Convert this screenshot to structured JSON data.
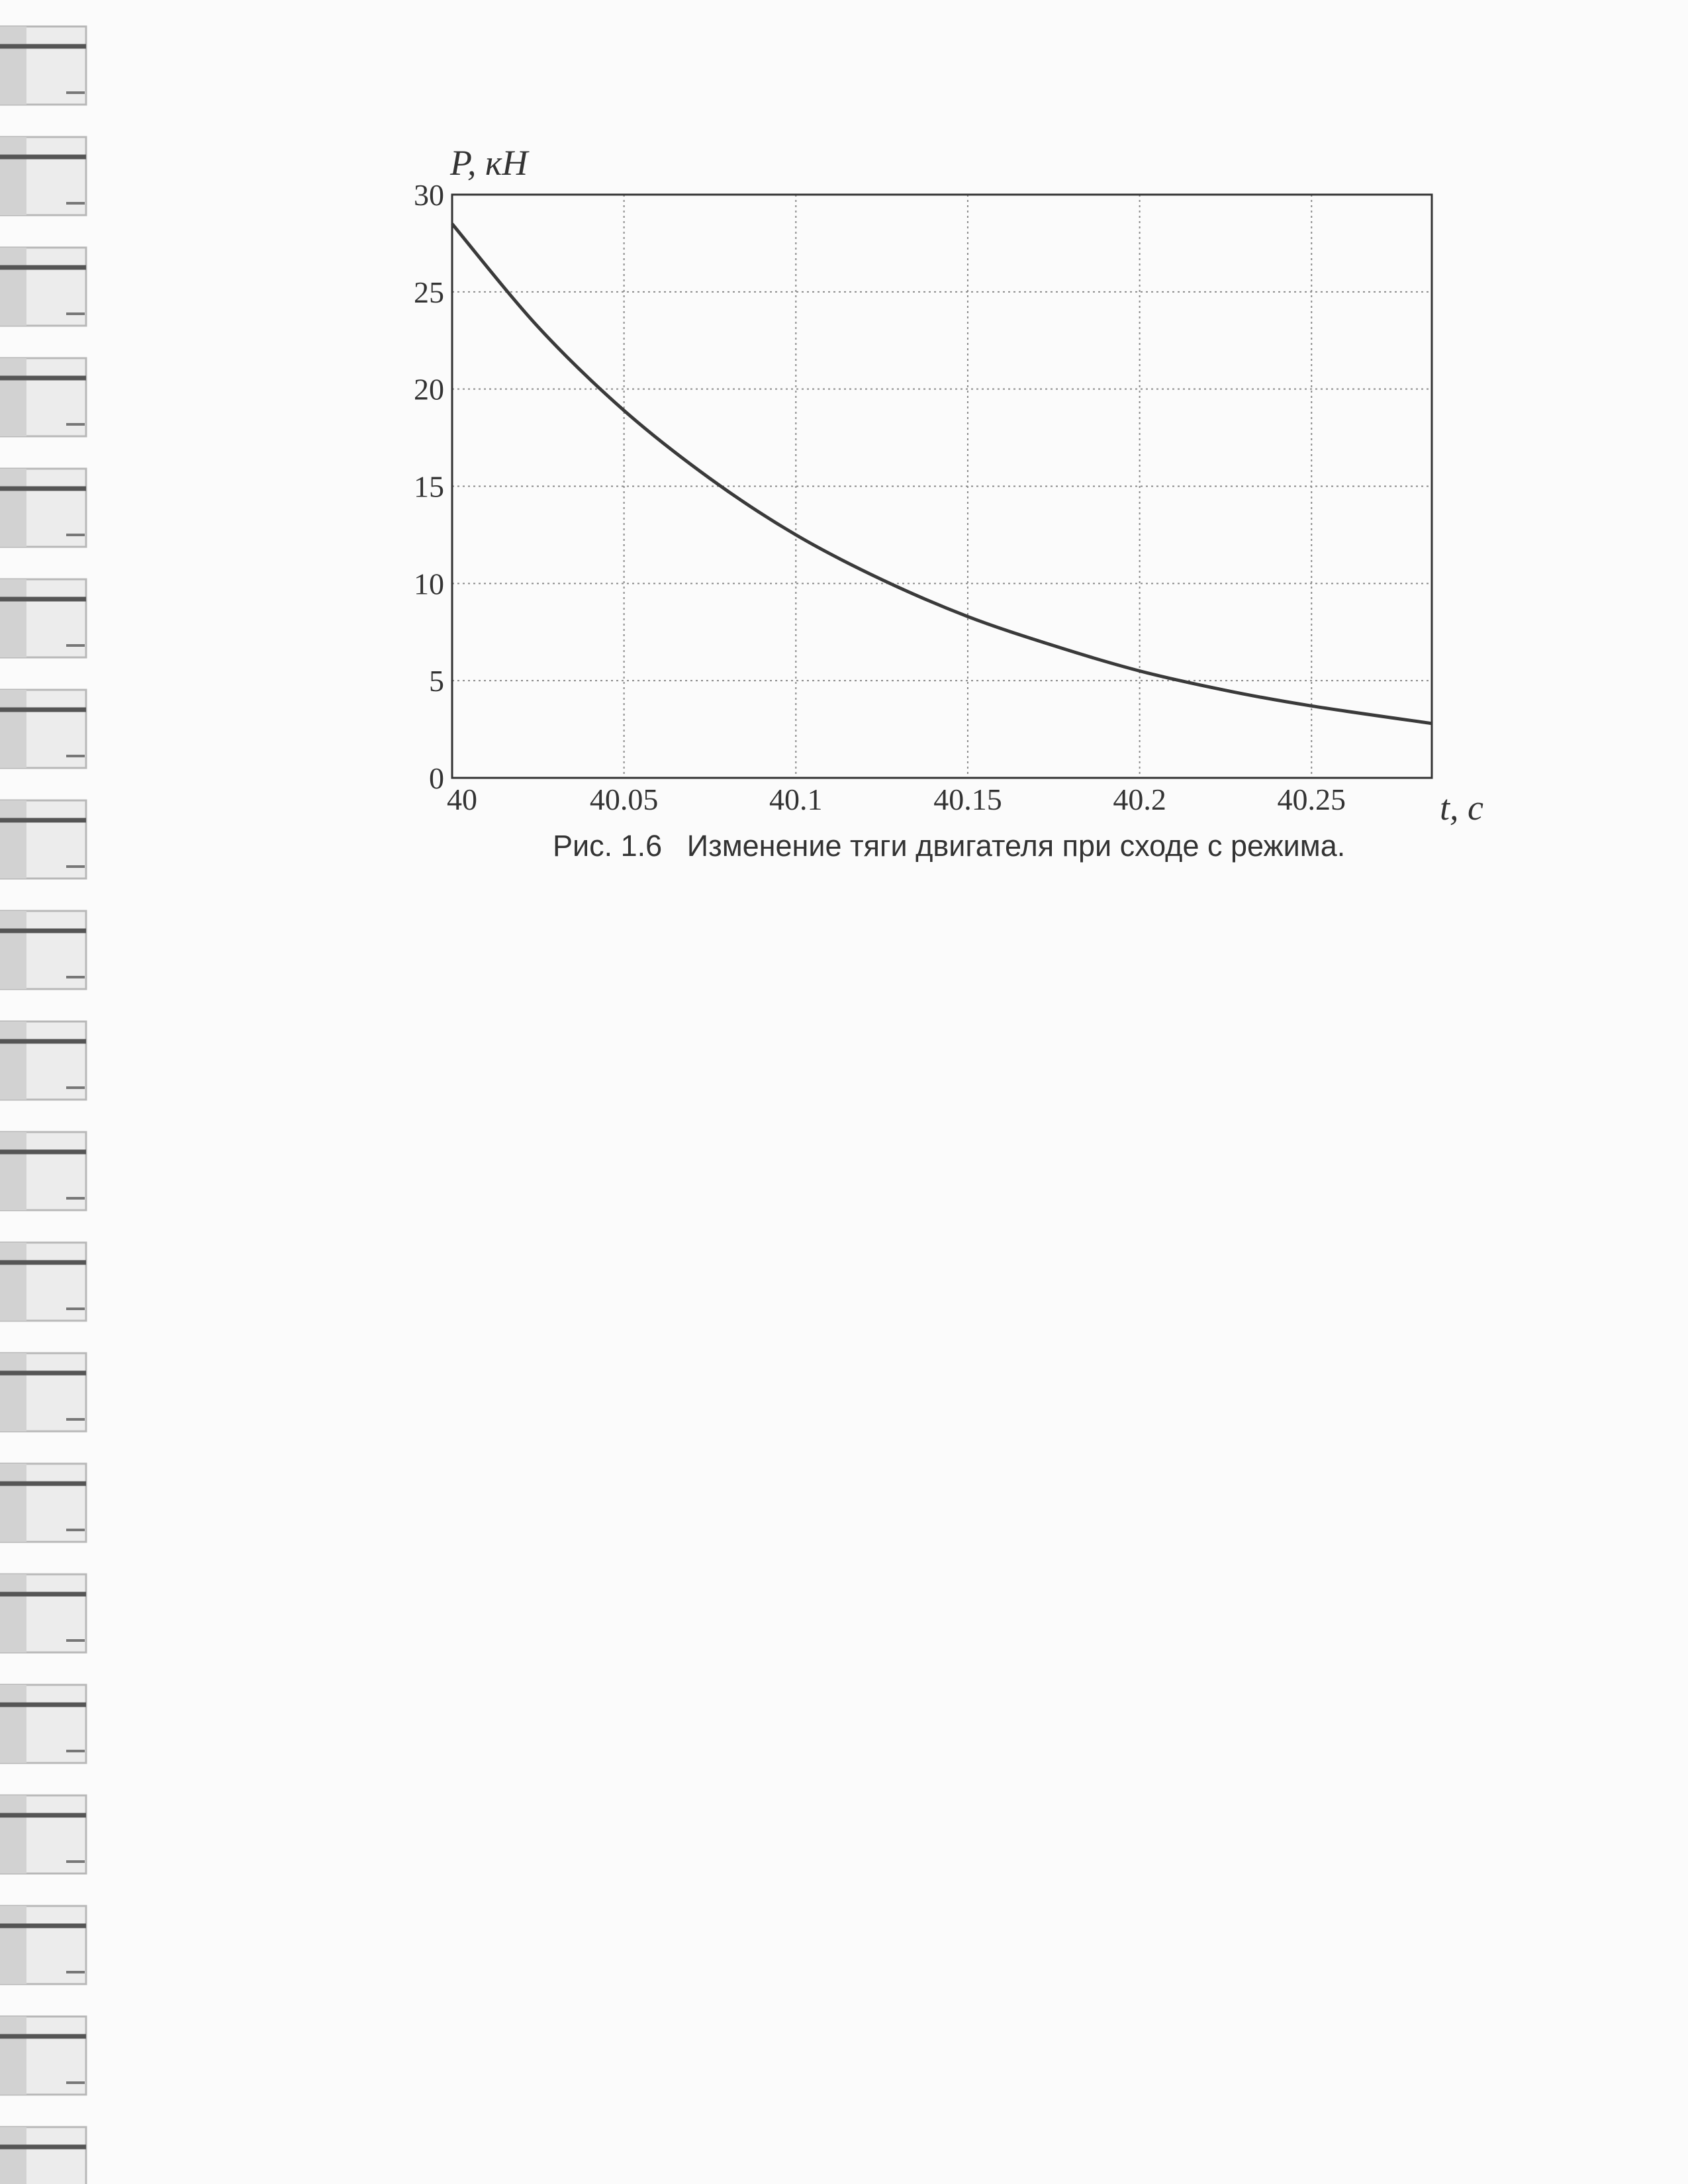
{
  "caption": "Рис. 1.6   Изменение тяги двигателя при сходе с режима.",
  "colors": {
    "ink": "#333333",
    "grid": "#8a8a8a",
    "curve": "#3a3a3a",
    "paper": "#fbfbfb",
    "binding": "#b8b8b8"
  },
  "chart_data": {
    "type": "line",
    "title": "",
    "xlabel": "t, с",
    "ylabel": "P, кН",
    "xlim": [
      40,
      40.285
    ],
    "ylim": [
      0,
      30
    ],
    "xticks": [
      40,
      40.05,
      40.1,
      40.15,
      40.2,
      40.25
    ],
    "xtick_labels": [
      "40",
      "40.05",
      "40.1",
      "40.15",
      "40.2",
      "40.25"
    ],
    "yticks": [
      0,
      5,
      10,
      15,
      20,
      25,
      30
    ],
    "ytick_labels": [
      "0",
      "5",
      "10",
      "15",
      "20",
      "25",
      "30"
    ],
    "grid": true,
    "legend": "none",
    "series": [
      {
        "x": [
          40,
          40.025,
          40.05,
          40.075,
          40.1,
          40.125,
          40.15,
          40.175,
          40.2,
          40.225,
          40.25,
          40.285
        ],
        "y": [
          28.5,
          23.2,
          18.9,
          15.4,
          12.5,
          10.2,
          8.3,
          6.8,
          5.5,
          4.5,
          3.7,
          2.8
        ]
      }
    ]
  }
}
